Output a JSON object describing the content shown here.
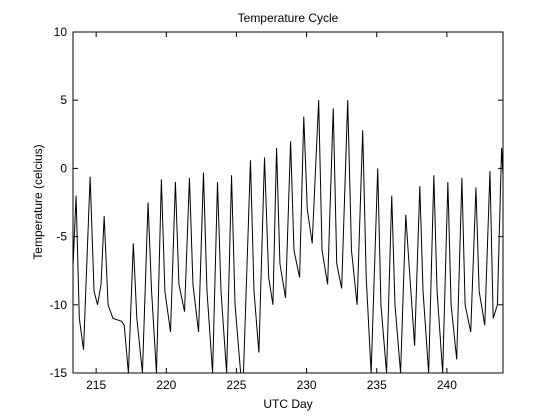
{
  "chart_data": {
    "type": "line",
    "title": "Temperature Cycle",
    "xlabel": "UTC Day",
    "ylabel": "Temperature (celcius)",
    "xlim": [
      213.35,
      244
    ],
    "ylim": [
      -15,
      10
    ],
    "xticks": [
      215,
      220,
      225,
      230,
      235,
      240
    ],
    "yticks": [
      -15,
      -10,
      -5,
      0,
      5,
      10
    ],
    "grid": false,
    "x": [
      213.36,
      213.57,
      213.8,
      214.1,
      214.57,
      214.85,
      215.1,
      215.35,
      215.57,
      215.85,
      216.2,
      216.8,
      217.0,
      217.3,
      217.65,
      217.9,
      218.3,
      218.7,
      218.95,
      219.3,
      219.65,
      219.9,
      220.3,
      220.65,
      220.9,
      221.3,
      221.65,
      221.9,
      222.3,
      222.65,
      222.9,
      223.3,
      223.65,
      223.9,
      224.3,
      224.65,
      224.9,
      225.3,
      225.5,
      226.0,
      226.25,
      226.6,
      227.0,
      227.3,
      227.6,
      227.86,
      228.1,
      228.5,
      228.86,
      229.1,
      229.5,
      229.8,
      230.05,
      230.4,
      230.86,
      231.1,
      231.5,
      231.9,
      232.15,
      232.5,
      232.93,
      233.2,
      233.6,
      234.0,
      234.25,
      234.6,
      235.07,
      235.3,
      235.7,
      236.07,
      236.3,
      236.7,
      237.07,
      237.3,
      237.7,
      238.07,
      238.3,
      238.7,
      239.07,
      239.3,
      239.7,
      240.07,
      240.3,
      240.7,
      241.07,
      241.3,
      241.7,
      242.07,
      242.3,
      242.7,
      243.07,
      243.3,
      243.6,
      243.9,
      244.0
    ],
    "series": [
      {
        "name": "Temperature",
        "color": "#000000",
        "values": [
          -7,
          -2,
          -11,
          -13.3,
          -0.6,
          -9,
          -10,
          -8.5,
          -3.5,
          -10,
          -11,
          -11.2,
          -11.5,
          -15,
          -5.5,
          -11,
          -15,
          -2.5,
          -9,
          -15,
          -0.8,
          -9,
          -12,
          -1,
          -8.5,
          -10.5,
          -0.7,
          -8.5,
          -12,
          -0.3,
          -9,
          -15,
          -1,
          -9,
          -15,
          -0.5,
          -10,
          -15,
          -15,
          0.6,
          -9,
          -13.5,
          0.8,
          -8,
          -10,
          1.5,
          -7,
          -9.5,
          2,
          -6,
          -8,
          3.8,
          -3,
          -5.5,
          5,
          -6,
          -8.5,
          4.4,
          -7,
          -8.8,
          5,
          -6,
          -10,
          2.8,
          -8,
          -15,
          0,
          -10,
          -15,
          -2,
          -10,
          -15,
          -3.4,
          -7,
          -13,
          -1.3,
          -9,
          -15,
          -0.5,
          -9,
          -15,
          -1,
          -10,
          -14,
          -0.7,
          -10,
          -12,
          -1.4,
          -9,
          -11.5,
          -0.2,
          -11,
          -10,
          1.5,
          -0.5
        ]
      }
    ]
  }
}
